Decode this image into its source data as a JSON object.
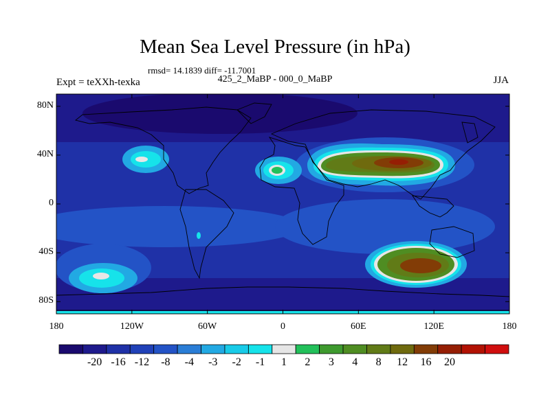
{
  "title": "Mean Sea Level Pressure (in hPa)",
  "stats": "rmsd= 14.1839 diff= -11.7001",
  "subtitle": "425_2_MaBP - 000_0_MaBP",
  "left_label": "Expt = teXXh-texka",
  "right_label": "JJA",
  "chart_data": {
    "type": "heatmap",
    "variable": "Mean Sea Level Pressure difference",
    "units": "hPa",
    "xlim": [
      -180,
      180
    ],
    "ylim": [
      -90,
      90
    ],
    "y_ticks": [
      {
        "value": 80,
        "label": "80N"
      },
      {
        "value": 40,
        "label": "40N"
      },
      {
        "value": 0,
        "label": "0"
      },
      {
        "value": -40,
        "label": "40S"
      },
      {
        "value": -80,
        "label": "80S"
      }
    ],
    "x_ticks": [
      {
        "value": -180,
        "label": "180"
      },
      {
        "value": -120,
        "label": "120W"
      },
      {
        "value": -60,
        "label": "60W"
      },
      {
        "value": 0,
        "label": "0"
      },
      {
        "value": 60,
        "label": "60E"
      },
      {
        "value": 120,
        "label": "120E"
      },
      {
        "value": 180,
        "label": "180"
      }
    ],
    "colorbar": {
      "levels": [
        "-20",
        "-16",
        "-12",
        "-8",
        "-4",
        "-3",
        "-2",
        "-1",
        "1",
        "2",
        "3",
        "4",
        "8",
        "12",
        "16",
        "20"
      ],
      "colors": [
        "#1a0a6e",
        "#1e1a8c",
        "#1f31a7",
        "#2041b8",
        "#2353c6",
        "#2a7dd6",
        "#22a9e3",
        "#18cbe8",
        "#16e3ea",
        "#e6e6e6",
        "#22c05a",
        "#3e9a2e",
        "#4f8d22",
        "#617b17",
        "#6f6a0e",
        "#823c06",
        "#951e04",
        "#b21203",
        "#d00e0e"
      ]
    },
    "features": [
      {
        "name": "Central Asia high",
        "lon": 90,
        "lat": 32,
        "value": 16
      },
      {
        "name": "West Asia high",
        "lon": 48,
        "lat": 30,
        "value": 8
      },
      {
        "name": "Southern Indian Ocean high",
        "lon": 105,
        "lat": -50,
        "value": 12
      },
      {
        "name": "North Africa high",
        "lon": -5,
        "lat": 27,
        "value": 2
      },
      {
        "name": "North Pacific anomaly",
        "lon": -125,
        "lat": 35,
        "value": -1
      },
      {
        "name": "South Pacific anomaly",
        "lon": -155,
        "lat": -62,
        "value": -1
      },
      {
        "name": "Arctic low",
        "lon": 0,
        "lat": 80,
        "value": -16
      }
    ]
  }
}
